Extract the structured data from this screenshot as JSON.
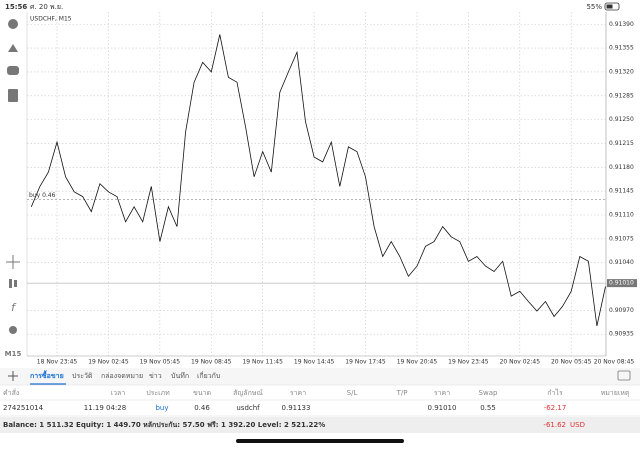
{
  "status_bar": {
    "time": "15:56",
    "date": "ศ. 20 พ.ย.",
    "battery": "55%"
  },
  "chart_data": {
    "type": "line",
    "title": "USDCHF, M15",
    "timeframe": "M15",
    "color": "#111111",
    "grid": true,
    "categories": [
      null,
      null,
      null,
      "18 Nov 23:45",
      null,
      null,
      null,
      null,
      null,
      "19 Nov 02:45",
      null,
      null,
      null,
      null,
      null,
      "19 Nov 05:45",
      null,
      null,
      null,
      null,
      null,
      "19 Nov 08:45",
      null,
      null,
      null,
      null,
      null,
      "19 Nov 11:45",
      null,
      null,
      null,
      null,
      null,
      "19 Nov 14:45",
      null,
      null,
      null,
      null,
      null,
      "19 Nov 17:45",
      null,
      null,
      null,
      null,
      null,
      "19 Nov 20:45",
      null,
      null,
      null,
      null,
      null,
      "19 Nov 23:45",
      null,
      null,
      null,
      null,
      null,
      "20 Nov 02:45",
      null,
      null,
      null,
      null,
      null,
      "20 Nov 05:45",
      null,
      null,
      null,
      null,
      null,
      "20 Nov 08:45"
    ],
    "values": [
      0.91122,
      0.91152,
      0.91173,
      0.91217,
      0.91166,
      0.91144,
      0.91137,
      0.91115,
      0.91156,
      0.91144,
      0.91137,
      0.911,
      0.91122,
      0.911,
      0.91152,
      0.91071,
      0.91122,
      0.91093,
      0.91232,
      0.91305,
      0.91334,
      0.9132,
      0.91375,
      0.91312,
      0.91305,
      0.91239,
      0.91166,
      0.91203,
      0.91173,
      0.9129,
      0.9132,
      0.91349,
      0.91247,
      0.91195,
      0.91188,
      0.91217,
      0.91152,
      0.9121,
      0.91203,
      0.91166,
      0.91093,
      0.91049,
      0.91071,
      0.91049,
      0.9102,
      0.91035,
      0.91064,
      0.91071,
      0.91093,
      0.91078,
      0.91071,
      0.91042,
      0.91049,
      0.91035,
      0.91027,
      0.91042,
      0.90991,
      0.90998,
      0.90983,
      0.90969,
      0.90983,
      0.90961,
      0.90976,
      0.90998,
      0.91049,
      0.91042,
      0.90947,
      0.91005,
      null,
      null
    ],
    "ylim": [
      0.90903,
      0.91408
    ],
    "yticks": [
      {
        "value": 0.9139,
        "label": "0.91390"
      },
      0.91355,
      {
        "value": 0.9132,
        "label": "0.91320"
      },
      0.91285,
      {
        "value": 0.9125,
        "label": "0.91250"
      },
      0.91215,
      {
        "value": 0.9118,
        "label": "0.91180"
      },
      0.91145,
      {
        "value": 0.9111,
        "label": "0.91110"
      },
      0.91075,
      {
        "value": 0.9104,
        "label": "0.91040"
      },
      {
        "value": 0.9097,
        "label": "0.90970"
      },
      0.90935
    ],
    "current_price": {
      "value": 0.9101,
      "label": "0.91010"
    },
    "position_line": {
      "value": 0.91133,
      "label": "buy 0.46"
    }
  },
  "tabs": [
    "การซื้อขาย",
    "ประวัติ",
    "กล่องจดหมาย",
    "ข่าว",
    "บันทึก",
    "เกี่ยวกับ"
  ],
  "table": {
    "headers": [
      "คำสั่ง",
      "เวลา",
      "ประเภท",
      "ขนาด",
      "สัญลักษณ์",
      "ราคา",
      "S/L",
      "T/P",
      "ราคา",
      "Swap",
      "กำไร",
      "หมายเหตุ"
    ],
    "rows": [
      [
        "274251014",
        "11.19 04:28",
        "buy",
        "0.46",
        "usdchf",
        "0.91133",
        null,
        null,
        "0.91010",
        "0.55",
        "-62.17",
        null
      ]
    ]
  },
  "footer": {
    "balance": "Balance: 1 511.32 Equity: 1 449.70 หลักประกัน: 57.50 ฟรี: 1 392.20 Level: 2 521.22%",
    "profit": "-61.62",
    "currency": "USD"
  }
}
